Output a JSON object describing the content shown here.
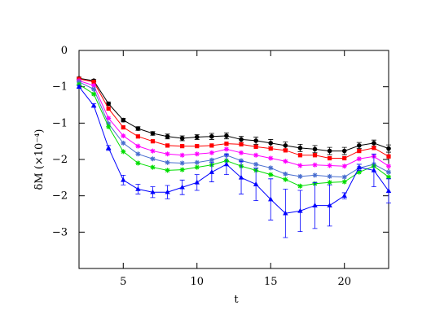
{
  "chart_data": {
    "type": "line",
    "x_label": "t",
    "y_label": "δM  (×10⁻⁴)",
    "xlim": [
      2,
      23
    ],
    "ylim": [
      -3.6,
      0
    ],
    "xticks": [
      5,
      10,
      15,
      20
    ],
    "yticks": [
      0,
      {
        "value": -0.6,
        "label": "−1"
      },
      {
        "value": -1.2,
        "label": "−1"
      },
      {
        "value": -1.8,
        "label": "−2"
      },
      {
        "value": -2.4,
        "label": "−2"
      },
      {
        "value": -3.0,
        "label": "−3"
      }
    ],
    "x": [
      2,
      3,
      4,
      5,
      6,
      7,
      8,
      9,
      10,
      11,
      12,
      13,
      14,
      15,
      16,
      17,
      18,
      19,
      20,
      21,
      22,
      23
    ],
    "series": [
      {
        "color": "#000000",
        "marker": "circle",
        "values": [
          -0.46,
          -0.5,
          -0.88,
          -1.15,
          -1.29,
          -1.37,
          -1.42,
          -1.45,
          -1.43,
          -1.42,
          -1.41,
          -1.47,
          -1.49,
          -1.53,
          -1.57,
          -1.61,
          -1.63,
          -1.66,
          -1.66,
          -1.57,
          -1.53,
          -1.62
        ],
        "errors": [
          0.02,
          0.02,
          0.03,
          0.03,
          0.03,
          0.03,
          0.04,
          0.04,
          0.04,
          0.05,
          0.05,
          0.05,
          0.06,
          0.06,
          0.06,
          0.06,
          0.06,
          0.06,
          0.06,
          0.05,
          0.05,
          0.06
        ]
      },
      {
        "color": "#ff0000",
        "marker": "square",
        "values": [
          -0.47,
          -0.52,
          -0.96,
          -1.27,
          -1.42,
          -1.5,
          -1.57,
          -1.58,
          -1.58,
          -1.57,
          -1.54,
          -1.55,
          -1.59,
          -1.62,
          -1.65,
          -1.73,
          -1.73,
          -1.78,
          -1.78,
          -1.66,
          -1.61,
          -1.75
        ]
      },
      {
        "color": "#ff00ff",
        "marker": "star",
        "values": [
          -0.5,
          -0.58,
          -1.12,
          -1.41,
          -1.58,
          -1.66,
          -1.71,
          -1.73,
          -1.71,
          -1.69,
          -1.63,
          -1.69,
          -1.73,
          -1.78,
          -1.83,
          -1.9,
          -1.89,
          -1.9,
          -1.91,
          -1.79,
          -1.75,
          -1.91
        ]
      },
      {
        "color": "#4a6fd0",
        "marker": "star",
        "values": [
          -0.52,
          -0.64,
          -1.21,
          -1.53,
          -1.71,
          -1.79,
          -1.85,
          -1.86,
          -1.85,
          -1.81,
          -1.73,
          -1.82,
          -1.88,
          -1.94,
          -2.04,
          -2.08,
          -2.06,
          -2.08,
          -2.09,
          -1.94,
          -1.88,
          -2.01
        ]
      },
      {
        "color": "#00dd00",
        "marker": "star",
        "values": [
          -0.56,
          -0.72,
          -1.26,
          -1.67,
          -1.86,
          -1.93,
          -1.98,
          -1.97,
          -1.93,
          -1.89,
          -1.82,
          -1.91,
          -1.98,
          -2.05,
          -2.13,
          -2.24,
          -2.2,
          -2.18,
          -2.17,
          -2.01,
          -1.91,
          -2.09
        ]
      },
      {
        "color": "#0000ff",
        "marker": "triangle",
        "values": [
          -0.6,
          -0.91,
          -1.61,
          -2.14,
          -2.29,
          -2.34,
          -2.34,
          -2.26,
          -2.18,
          -2.01,
          -1.88,
          -2.1,
          -2.21,
          -2.46,
          -2.69,
          -2.65,
          -2.56,
          -2.56,
          -2.4,
          -1.93,
          -1.98,
          -2.32
        ],
        "errors": [
          0.02,
          0.03,
          0.04,
          0.08,
          0.08,
          0.09,
          0.11,
          0.12,
          0.13,
          0.16,
          0.17,
          0.27,
          0.27,
          0.34,
          0.4,
          0.34,
          0.38,
          0.34,
          0.05,
          0.05,
          0.27,
          0.2
        ]
      }
    ]
  }
}
